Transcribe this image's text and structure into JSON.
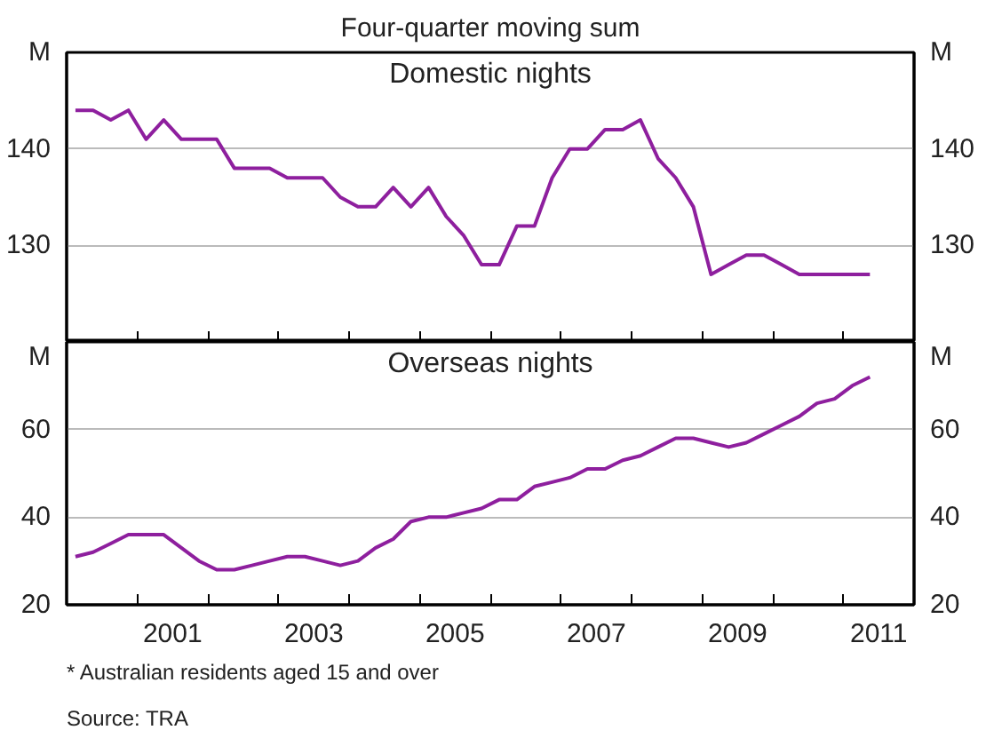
{
  "chart_data": [
    {
      "type": "line",
      "title": "Domestic nights",
      "annotations": [
        "Four-quarter moving sum"
      ],
      "ylabel": "M",
      "y2label": "M",
      "x": [
        2000.125,
        2000.375,
        2000.625,
        2000.875,
        2001.125,
        2001.375,
        2001.625,
        2001.875,
        2002.125,
        2002.375,
        2002.625,
        2002.875,
        2003.125,
        2003.375,
        2003.625,
        2003.875,
        2004.125,
        2004.375,
        2004.625,
        2004.875,
        2005.125,
        2005.375,
        2005.625,
        2005.875,
        2006.125,
        2006.375,
        2006.625,
        2006.875,
        2007.125,
        2007.375,
        2007.625,
        2007.875,
        2008.125,
        2008.375,
        2008.625,
        2008.875,
        2009.125,
        2009.375,
        2009.625,
        2009.875,
        2010.125,
        2010.375,
        2010.625,
        2010.875,
        2011.125,
        2011.375
      ],
      "series": [
        {
          "color": "#8e1f9e",
          "values": [
            144,
            144,
            143,
            144,
            141,
            143,
            141,
            141,
            141,
            138,
            138,
            138,
            137,
            137,
            137,
            135,
            134,
            134,
            136,
            134,
            136,
            133,
            131,
            128,
            128,
            132,
            132,
            137,
            140,
            140,
            142,
            142,
            143,
            139,
            137,
            134,
            127,
            128,
            129,
            129,
            128,
            127,
            127,
            127,
            127,
            127
          ]
        }
      ],
      "xlim": [
        2000,
        2012
      ],
      "xticks": [
        {
          "value": 2001,
          "label": null
        },
        {
          "value": 2002,
          "label": null
        },
        {
          "value": 2003,
          "label": null
        },
        {
          "value": 2004,
          "label": null
        },
        {
          "value": 2005,
          "label": null
        },
        {
          "value": 2006,
          "label": null
        },
        {
          "value": 2007,
          "label": null
        },
        {
          "value": 2008,
          "label": null
        },
        {
          "value": 2009,
          "label": null
        },
        {
          "value": 2010,
          "label": null
        },
        {
          "value": 2011,
          "label": null
        }
      ],
      "ylim": [
        120,
        150
      ],
      "yticks": [
        130,
        140
      ],
      "y2lim": [
        120,
        150
      ],
      "y2ticks": [
        130,
        140
      ],
      "grid": "y",
      "tick_labels": "y",
      "line_style": "solid"
    },
    {
      "type": "line",
      "title": "Overseas nights",
      "annotations": [
        "*      Australian residents aged 15 and over",
        "Source: TRA"
      ],
      "ylabel": "M",
      "y2label": "M",
      "x": [
        2000.125,
        2000.375,
        2000.625,
        2000.875,
        2001.125,
        2001.375,
        2001.625,
        2001.875,
        2002.125,
        2002.375,
        2002.625,
        2002.875,
        2003.125,
        2003.375,
        2003.625,
        2003.875,
        2004.125,
        2004.375,
        2004.625,
        2004.875,
        2005.125,
        2005.375,
        2005.625,
        2005.875,
        2006.125,
        2006.375,
        2006.625,
        2006.875,
        2007.125,
        2007.375,
        2007.625,
        2007.875,
        2008.125,
        2008.375,
        2008.625,
        2008.875,
        2009.125,
        2009.375,
        2009.625,
        2009.875,
        2010.125,
        2010.375,
        2010.625,
        2010.875,
        2011.125,
        2011.375
      ],
      "series": [
        {
          "color": "#8e1f9e",
          "values": [
            31,
            32,
            34,
            36,
            36,
            36,
            33,
            30,
            28,
            28,
            29,
            30,
            31,
            31,
            30,
            29,
            30,
            33,
            35,
            39,
            40,
            40,
            41,
            42,
            44,
            44,
            47,
            48,
            49,
            51,
            51,
            53,
            54,
            56,
            58,
            58,
            57,
            56,
            57,
            59,
            61,
            63,
            66,
            67,
            70,
            72
          ]
        }
      ],
      "xlim": [
        2000,
        2012
      ],
      "xticks": [
        {
          "value": 2001,
          "label": null
        },
        {
          "value": 2001.5,
          "label": "2001"
        },
        {
          "value": 2002,
          "label": null
        },
        {
          "value": 2003,
          "label": null
        },
        {
          "value": 2003.5,
          "label": "2003"
        },
        {
          "value": 2004,
          "label": null
        },
        {
          "value": 2005,
          "label": null
        },
        {
          "value": 2005.5,
          "label": "2005"
        },
        {
          "value": 2006,
          "label": null
        },
        {
          "value": 2007,
          "label": null
        },
        {
          "value": 2007.5,
          "label": "2007"
        },
        {
          "value": 2008,
          "label": null
        },
        {
          "value": 2009,
          "label": null
        },
        {
          "value": 2009.5,
          "label": "2009"
        },
        {
          "value": 2010,
          "label": null
        },
        {
          "value": 2011,
          "label": null
        },
        {
          "value": 2011.5,
          "label": "2011"
        }
      ],
      "ylim": [
        20,
        80
      ],
      "yticks": [
        20,
        40,
        60
      ],
      "y2lim": [
        20,
        80
      ],
      "y2ticks": [
        20,
        40,
        60
      ],
      "grid": "y",
      "line_style": "solid"
    }
  ]
}
